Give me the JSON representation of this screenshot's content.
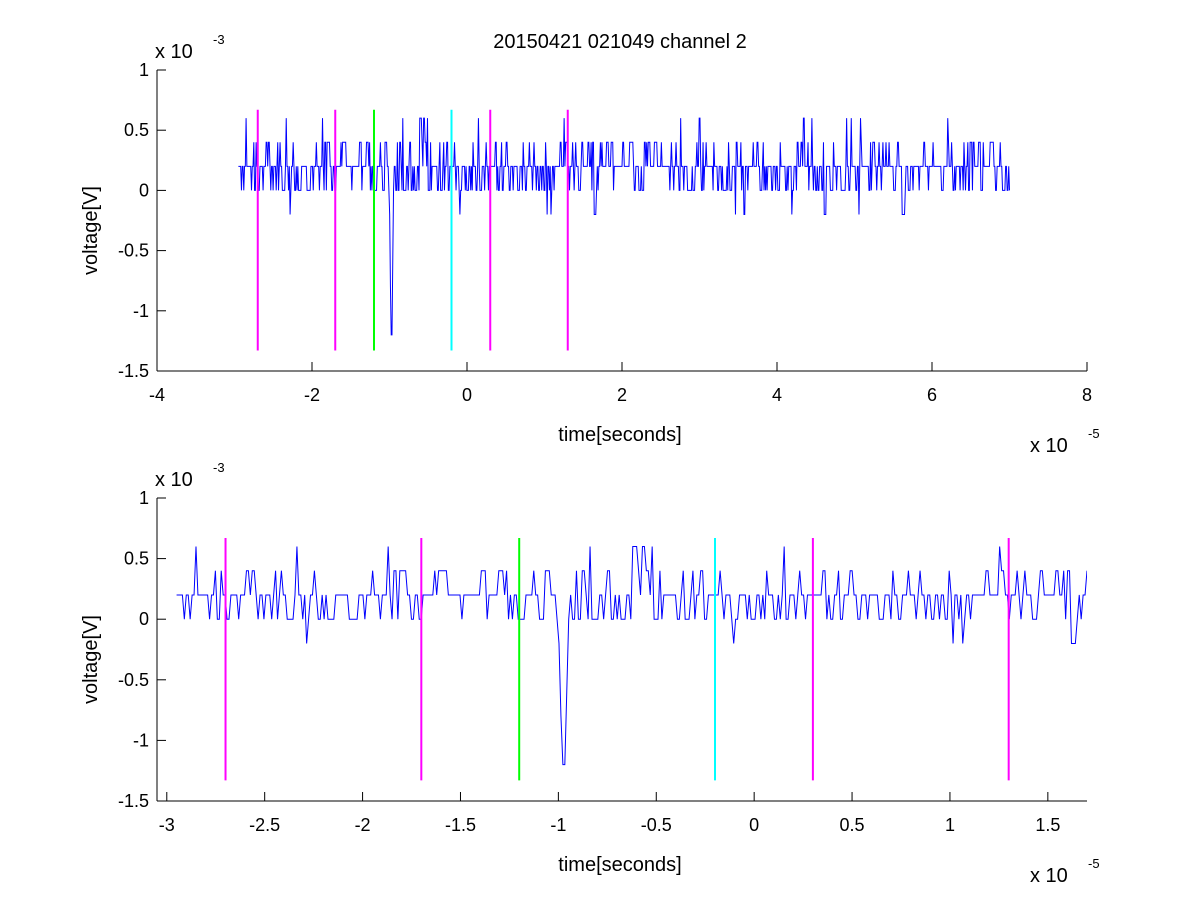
{
  "figure": {
    "title": "20150421 021049 channel 2"
  },
  "colors": {
    "signal": "#0000ff",
    "marker_magenta": "#ff00ff",
    "marker_green": "#00ff00",
    "marker_cyan": "#00ffff",
    "axes": "#000000",
    "background": "#ffffff"
  },
  "chart_data": [
    {
      "type": "line",
      "xlabel": "time[seconds]",
      "ylabel": "voltage[V]",
      "x_multiplier": {
        "base": "x 10",
        "exponent": "-5"
      },
      "y_multiplier": {
        "base": "x 10",
        "exponent": "-3"
      },
      "xlim": [
        -4e-05,
        8e-05
      ],
      "ylim": [
        -0.0015,
        0.001
      ],
      "x_ticks": [
        -4e-05,
        -2e-05,
        0,
        2e-05,
        4e-05,
        6e-05,
        8e-05
      ],
      "x_tick_labels": [
        "-4",
        "-2",
        "0",
        "2",
        "4",
        "6",
        "8"
      ],
      "y_ticks": [
        -0.0015,
        -0.001,
        -0.0005,
        0,
        0.0005,
        0.001
      ],
      "y_tick_labels": [
        "-1.5",
        "-1",
        "-0.5",
        "0",
        "0.5",
        "1"
      ],
      "grid": false,
      "legend": "none",
      "signal": {
        "x_start": -2.95e-05,
        "x_end": 7e-05,
        "samples": 1000,
        "y_levels": [
          0,
          0.0002,
          0.0004
        ],
        "y_baseline": 0.0002,
        "y_min": -0.0012,
        "y_max": 0.0006,
        "dip_x": -9.8e-06,
        "dip_y": -0.0012,
        "peaks": [
          {
            "x": 1.5e-06,
            "y": 0.0006
          },
          {
            "x": 1.25e-05,
            "y": 0.0006
          },
          {
            "x": 4.45e-05,
            "y": 0.0006
          },
          {
            "x": 4.9e-05,
            "y": 0.0006
          },
          {
            "x": 6.2e-05,
            "y": 0.0006
          }
        ]
      },
      "markers": [
        {
          "x": -2.7e-05,
          "color": "marker_magenta",
          "y_from": -0.00133,
          "y_to": 0.00067
        },
        {
          "x": -1.7e-05,
          "color": "marker_magenta",
          "y_from": -0.00133,
          "y_to": 0.00067
        },
        {
          "x": -1.2e-05,
          "color": "marker_green",
          "y_from": -0.00133,
          "y_to": 0.00067
        },
        {
          "x": -2e-06,
          "color": "marker_cyan",
          "y_from": -0.00133,
          "y_to": 0.00067
        },
        {
          "x": 3e-06,
          "color": "marker_magenta",
          "y_from": -0.00133,
          "y_to": 0.00067
        },
        {
          "x": 1.3e-05,
          "color": "marker_magenta",
          "y_from": -0.00133,
          "y_to": 0.00067
        }
      ]
    },
    {
      "type": "line",
      "xlabel": "time[seconds]",
      "ylabel": "voltage[V]",
      "x_multiplier": {
        "base": "x 10",
        "exponent": "-5"
      },
      "y_multiplier": {
        "base": "x 10",
        "exponent": "-3"
      },
      "xlim": [
        -3.05e-05,
        1.7e-05
      ],
      "ylim": [
        -0.0015,
        0.001
      ],
      "x_ticks": [
        -3e-05,
        -2.5e-05,
        -2e-05,
        -1.5e-05,
        -1e-05,
        -5e-06,
        0,
        5e-06,
        1e-05,
        1.5e-05
      ],
      "x_tick_labels": [
        "-3",
        "-2.5",
        "-2",
        "-1.5",
        "-1",
        "-0.5",
        "0",
        "0.5",
        "1",
        "1.5"
      ],
      "y_ticks": [
        -0.0015,
        -0.001,
        -0.0005,
        0,
        0.0005,
        0.001
      ],
      "y_tick_labels": [
        "-1.5",
        "-1",
        "-0.5",
        "0",
        "0.5",
        "1"
      ],
      "grid": false,
      "legend": "none",
      "signal": {
        "x_start": -2.95e-05,
        "x_end": 1.7e-05,
        "samples": 470,
        "y_levels": [
          0,
          0.0002,
          0.0004
        ],
        "y_baseline": 0.0002,
        "y_min": -0.0012,
        "y_max": 0.0006,
        "dip_x": -9.8e-06,
        "dip_y": -0.0012,
        "peaks": [
          {
            "x": 1.5e-06,
            "y": 0.0006
          },
          {
            "x": 1.25e-05,
            "y": 0.0006
          }
        ]
      },
      "markers": [
        {
          "x": -2.7e-05,
          "color": "marker_magenta",
          "y_from": -0.00133,
          "y_to": 0.00067
        },
        {
          "x": -1.7e-05,
          "color": "marker_magenta",
          "y_from": -0.00133,
          "y_to": 0.00067
        },
        {
          "x": -1.2e-05,
          "color": "marker_green",
          "y_from": -0.00133,
          "y_to": 0.00067
        },
        {
          "x": -2e-06,
          "color": "marker_cyan",
          "y_from": -0.00133,
          "y_to": 0.00067
        },
        {
          "x": 3e-06,
          "color": "marker_magenta",
          "y_from": -0.00133,
          "y_to": 0.00067
        },
        {
          "x": 1.3e-05,
          "color": "marker_magenta",
          "y_from": -0.00133,
          "y_to": 0.00067
        }
      ]
    }
  ]
}
